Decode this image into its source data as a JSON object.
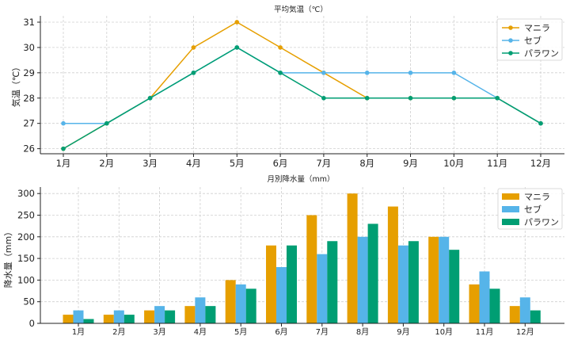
{
  "colors": {
    "manila": "#E69F00",
    "cebu": "#56B4E9",
    "palawan": "#009E73"
  },
  "chart_data": [
    {
      "type": "line",
      "title": "平均気温（℃）",
      "xlabel": "",
      "ylabel": "気温（℃）",
      "categories": [
        "1月",
        "2月",
        "3月",
        "4月",
        "5月",
        "6月",
        "7月",
        "8月",
        "9月",
        "10月",
        "11月",
        "12月"
      ],
      "ylim": [
        25.8,
        31.25
      ],
      "yticks": [
        26,
        27,
        28,
        29,
        30,
        31
      ],
      "grid": true,
      "legend": "top-right",
      "series": [
        {
          "name": "マニラ",
          "color_key": "manila",
          "values": [
            26,
            27,
            28,
            30,
            31,
            30,
            29,
            28,
            28,
            28,
            28,
            27
          ]
        },
        {
          "name": "セブ",
          "color_key": "cebu",
          "values": [
            27,
            27,
            28,
            29,
            30,
            29,
            29,
            29,
            29,
            29,
            28,
            27
          ]
        },
        {
          "name": "パラワン",
          "color_key": "palawan",
          "values": [
            26,
            27,
            28,
            29,
            30,
            29,
            28,
            28,
            28,
            28,
            28,
            27
          ]
        }
      ]
    },
    {
      "type": "bar",
      "title": "月別降水量（mm）",
      "xlabel": "",
      "ylabel": "降水量（mm）",
      "categories": [
        "1月",
        "2月",
        "3月",
        "4月",
        "5月",
        "6月",
        "7月",
        "8月",
        "9月",
        "10月",
        "11月",
        "12月"
      ],
      "ylim": [
        0,
        315
      ],
      "yticks": [
        0,
        50,
        100,
        150,
        200,
        250,
        300
      ],
      "grid": true,
      "legend": "top-right",
      "series": [
        {
          "name": "マニラ",
          "color_key": "manila",
          "values": [
            20,
            20,
            30,
            40,
            100,
            180,
            250,
            300,
            270,
            200,
            90,
            40
          ]
        },
        {
          "name": "セブ",
          "color_key": "cebu",
          "values": [
            30,
            30,
            40,
            60,
            90,
            130,
            160,
            200,
            180,
            200,
            120,
            60
          ]
        },
        {
          "name": "パラワン",
          "color_key": "palawan",
          "values": [
            10,
            20,
            30,
            40,
            80,
            180,
            190,
            230,
            190,
            170,
            80,
            30
          ]
        }
      ]
    }
  ]
}
